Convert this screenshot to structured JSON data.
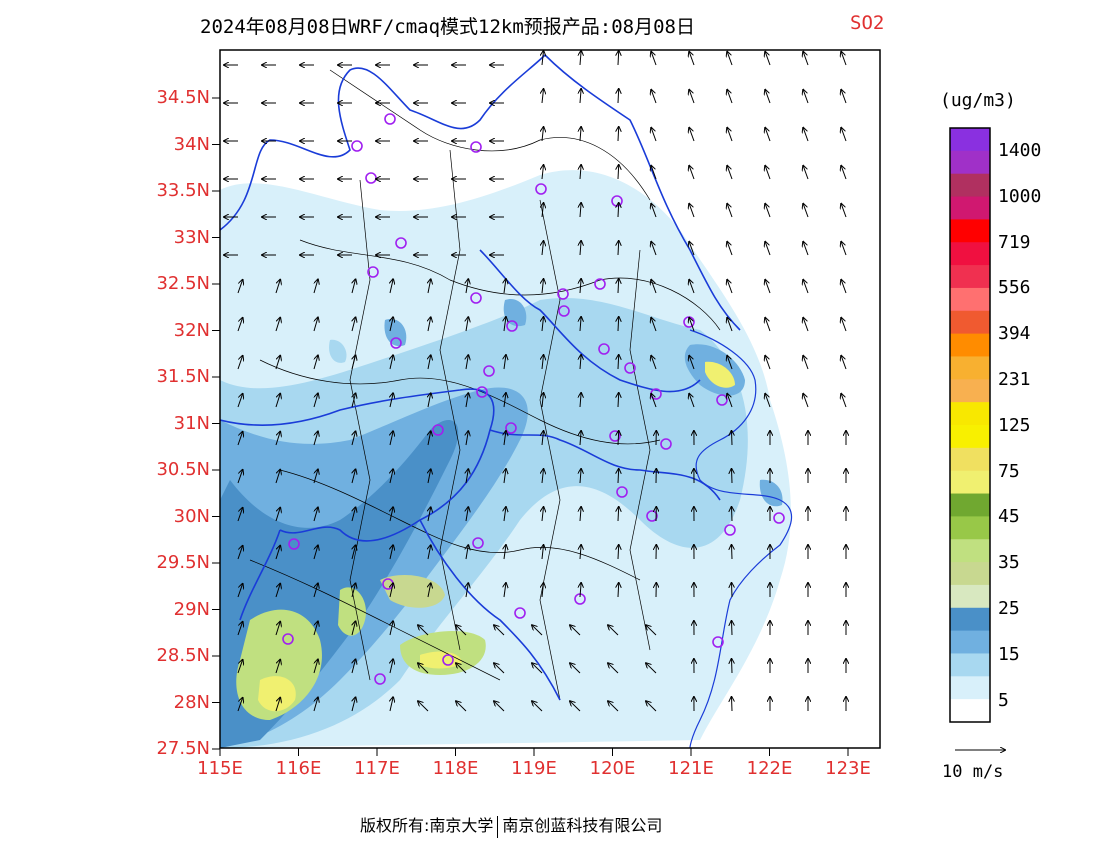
{
  "title": "2024年08月08日WRF/cmaq模式12km预报产品:08月08日",
  "species": "SO2",
  "unit": "(ug/m3)",
  "lat_labels": [
    "34.5N",
    "34N",
    "33.5N",
    "33N",
    "32.5N",
    "32N",
    "31.5N",
    "31N",
    "30.5N",
    "30N",
    "29.5N",
    "29N",
    "28.5N",
    "28N",
    "27.5N"
  ],
  "lon_labels": [
    "115E",
    "116E",
    "117E",
    "118E",
    "119E",
    "120E",
    "121E",
    "122E",
    "123E"
  ],
  "colorbar": {
    "labels": [
      "1400",
      "1000",
      "719",
      "556",
      "394",
      "231",
      "125",
      "75",
      "45",
      "35",
      "25",
      "15",
      "5"
    ],
    "colors": [
      "#8a30e0",
      "#a030c8",
      "#b03060",
      "#d01870",
      "#ff0000",
      "#f01040",
      "#f03050",
      "#ff7070",
      "#f05a30",
      "#ff8c00",
      "#f8b030",
      "#f8b050",
      "#f8e800",
      "#f8f000",
      "#f0e060",
      "#f0f070",
      "#70a830",
      "#98c848",
      "#c0e080",
      "#c8d890",
      "#d8e8c0",
      "#4a90c8",
      "#70b0e0",
      "#a8d8f0",
      "#d8f0fa",
      "#ffffff"
    ]
  },
  "wind_reference": "10 m/s",
  "copyright": {
    "left": "版权所有:南京大学",
    "right": "南京创蓝科技有限公司"
  }
}
